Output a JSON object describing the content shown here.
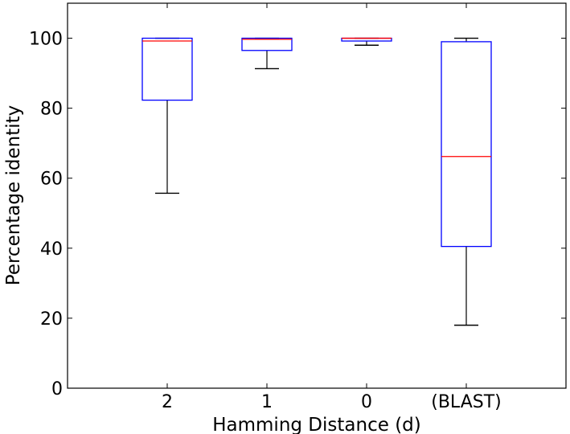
{
  "chart_data": {
    "type": "box",
    "title": "",
    "xlabel": "Hamming Distance (d)",
    "ylabel": "Percentage identity",
    "ylim": [
      0,
      110
    ],
    "yticks": [
      0,
      20,
      40,
      60,
      80,
      100
    ],
    "grid": false,
    "categories": [
      "2",
      "1",
      "0",
      "(BLAST)"
    ],
    "boxes": [
      {
        "category": "2",
        "whisker_low": 55.7,
        "q1": 82.3,
        "median": 99.2,
        "q3": 100,
        "whisker_high": 100
      },
      {
        "category": "1",
        "whisker_low": 91.3,
        "q1": 96.5,
        "median": 99.7,
        "q3": 100,
        "whisker_high": 100
      },
      {
        "category": "0",
        "whisker_low": 98.0,
        "q1": 99.2,
        "median": 100,
        "q3": 100,
        "whisker_high": 100
      },
      {
        "category": "(BLAST)",
        "whisker_low": 18.0,
        "q1": 40.5,
        "median": 66.2,
        "q3": 99.0,
        "whisker_high": 100
      }
    ],
    "colors": {
      "box": "#0000ff",
      "median": "#ff0000",
      "whisker": "#000000"
    }
  }
}
